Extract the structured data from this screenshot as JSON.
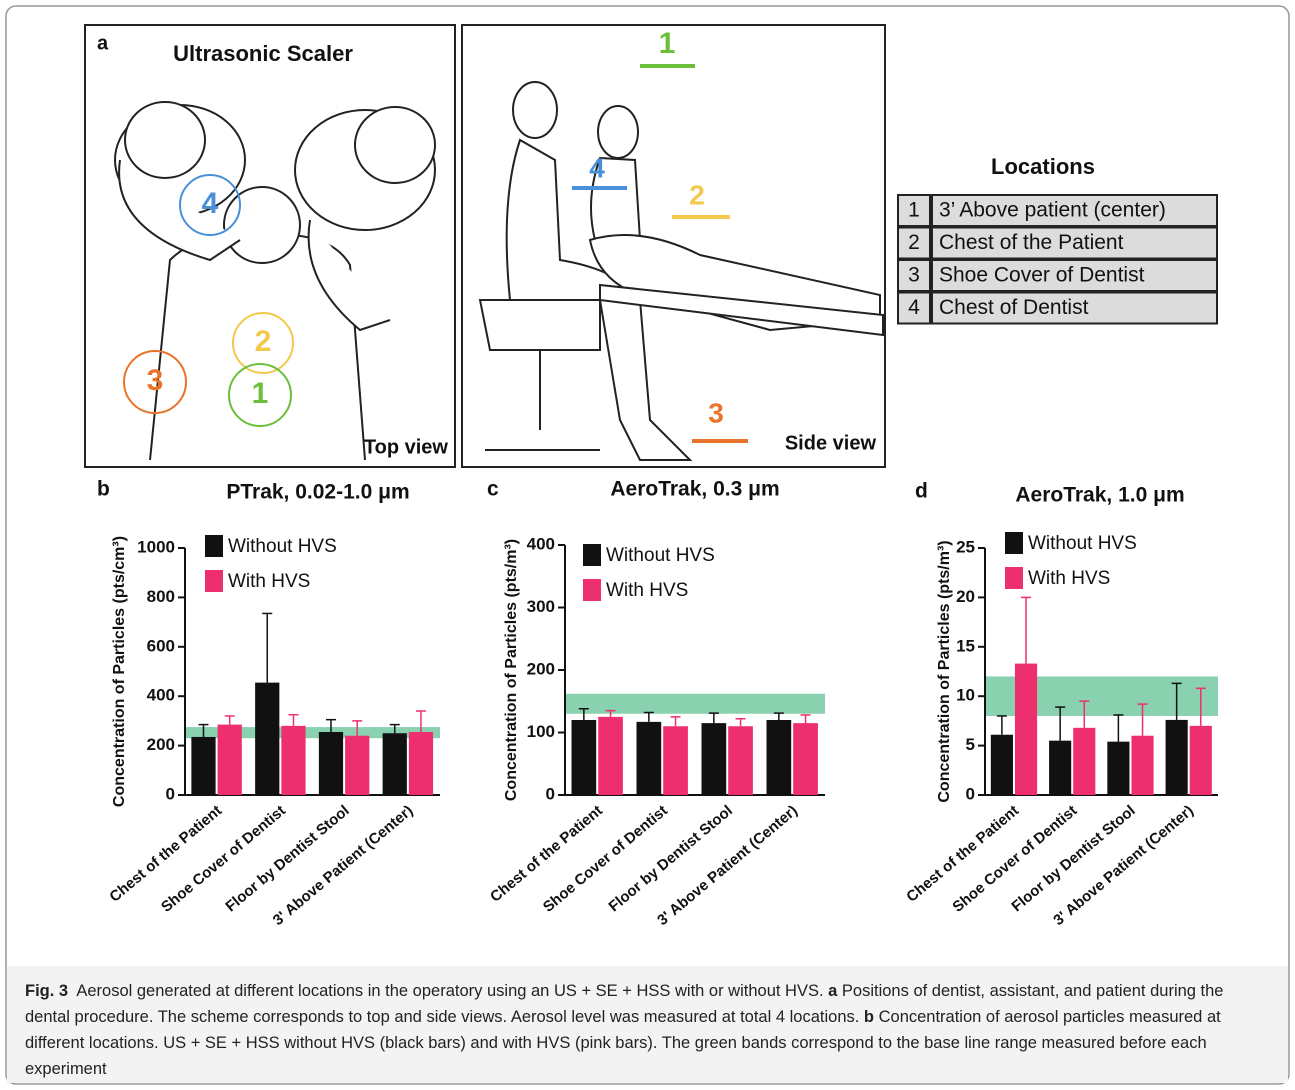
{
  "panel_a": {
    "label": "a",
    "title": "Ultrasonic Scaler",
    "top_view_label": "Top view",
    "side_view_label": "Side view",
    "top_markers": [
      "4",
      "2",
      "3",
      "1"
    ],
    "side_markers": [
      "1",
      "4",
      "2",
      "3"
    ],
    "locations": {
      "title": "Locations",
      "rows": [
        [
          "1",
          "3’ Above patient (center)"
        ],
        [
          "2",
          "Chest of the Patient"
        ],
        [
          "3",
          "Shoe Cover of Dentist"
        ],
        [
          "4",
          "Chest of Dentist"
        ]
      ]
    }
  },
  "chart_data": [
    {
      "type": "bar",
      "panel_label": "b",
      "title": "PTrak, 0.02-1.0 μm",
      "ylabel": "Concentration of Particles (pts/cm³)",
      "categories": [
        "Chest of the Patient",
        "Shoe Cover of Dentist",
        "Floor by Dentist Stool",
        "3' Above Patient (Center)"
      ],
      "series": [
        {
          "name": "Without HVS",
          "color": "#111111",
          "values": [
            235,
            455,
            255,
            250
          ],
          "errors": [
            50,
            280,
            50,
            35
          ]
        },
        {
          "name": "With HVS",
          "color": "#ee2f6f",
          "values": [
            285,
            280,
            240,
            255
          ],
          "errors": [
            35,
            45,
            60,
            85
          ]
        }
      ],
      "ylim": [
        0,
        1000
      ],
      "yticks": [
        0,
        200,
        400,
        600,
        800,
        1000
      ],
      "baseline_band": [
        230,
        275
      ],
      "band_color": "#3cb37a"
    },
    {
      "type": "bar",
      "panel_label": "c",
      "title": "AeroTrak, 0.3 μm",
      "ylabel": "Concentration of Particles (pts/m³)",
      "categories": [
        "Chest of the Patient",
        "Shoe Cover of Dentist",
        "Floor by Dentist Stool",
        "3' Above Patient (Center)"
      ],
      "series": [
        {
          "name": "Without HVS",
          "color": "#111111",
          "values": [
            120,
            117,
            115,
            120
          ],
          "errors": [
            18,
            15,
            16,
            11
          ]
        },
        {
          "name": "With HVS",
          "color": "#ee2f6f",
          "values": [
            125,
            110,
            110,
            115
          ],
          "errors": [
            10,
            15,
            12,
            13
          ]
        }
      ],
      "ylim": [
        0,
        400
      ],
      "yticks": [
        0,
        100,
        200,
        300,
        400
      ],
      "baseline_band": [
        130,
        162
      ],
      "band_color": "#3cb37a"
    },
    {
      "type": "bar",
      "panel_label": "d",
      "title": "AeroTrak, 1.0 μm",
      "ylabel": "Concentration of Particles (pts/m³)",
      "categories": [
        "Chest of the Patient",
        "Shoe Cover of Dentist",
        "Floor by Dentist Stool",
        "3' Above Patient (Center)"
      ],
      "series": [
        {
          "name": "Without HVS",
          "color": "#111111",
          "values": [
            6.1,
            5.5,
            5.4,
            7.6
          ],
          "errors": [
            1.9,
            3.4,
            2.7,
            3.7
          ]
        },
        {
          "name": "With HVS",
          "color": "#ee2f6f",
          "values": [
            13.3,
            6.8,
            6.0,
            7.0
          ],
          "errors": [
            6.7,
            2.7,
            3.2,
            3.8
          ]
        }
      ],
      "ylim": [
        0,
        25
      ],
      "yticks": [
        0,
        5,
        10,
        15,
        20,
        25
      ],
      "baseline_band": [
        8,
        12
      ],
      "band_color": "#3cb37a"
    }
  ],
  "caption": {
    "parts": [
      {
        "text": "Fig. 3",
        "bold": true
      },
      {
        "text": "  Aerosol generated at different locations in the operatory using an US + SE + HSS with or without HVS. "
      },
      {
        "text": "a",
        "bold": true
      },
      {
        "text": " Positions of dentist, assistant, and patient during the dental procedure. The scheme corresponds to top and side views. Aerosol level was measured at total 4 locations. "
      },
      {
        "text": "b",
        "bold": true
      },
      {
        "text": " Concentration of aerosol particles measured at different locations. US + SE + HSS without HVS (black bars) and with HVS (pink bars). The green bands correspond to the base line range measured before each experiment"
      }
    ]
  }
}
